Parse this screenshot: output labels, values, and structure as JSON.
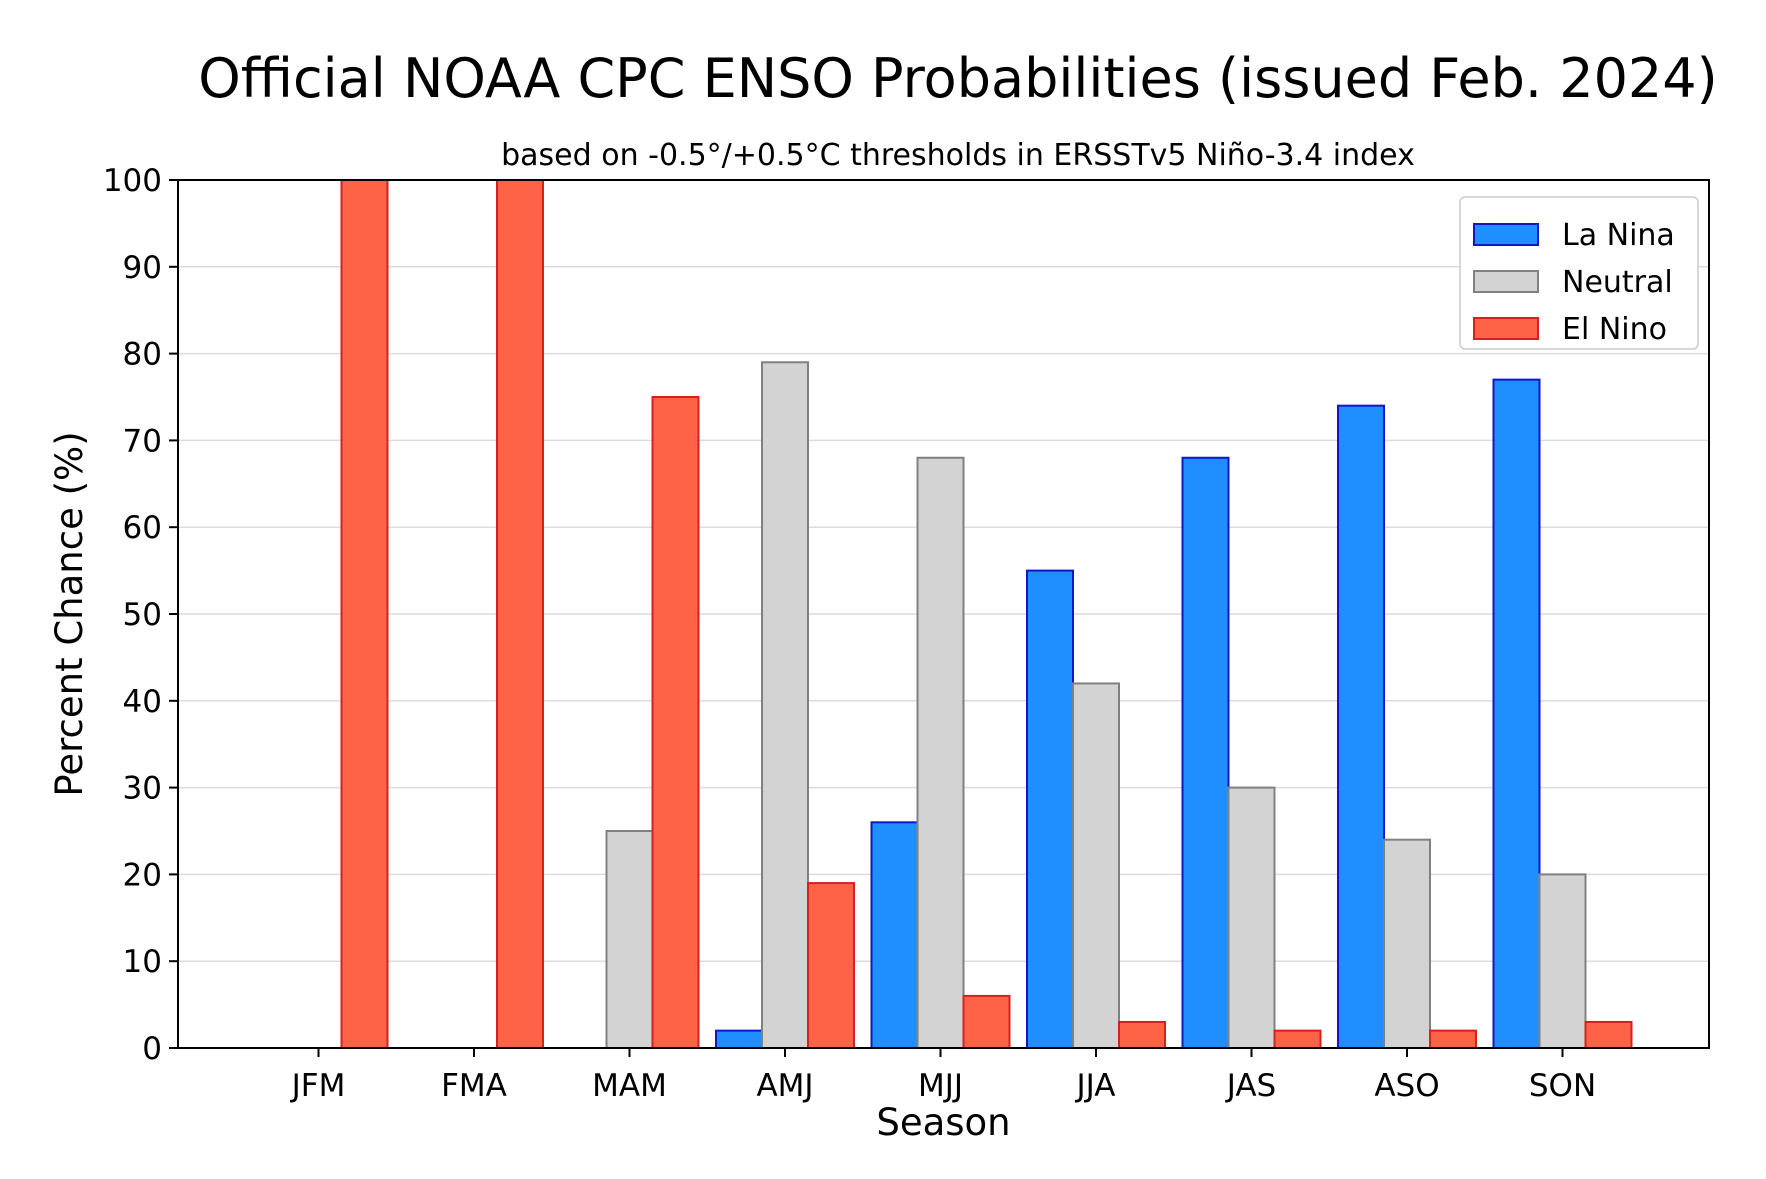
{
  "chart_data": {
    "type": "bar",
    "title": "Official NOAA CPC ENSO Probabilities (issued Feb. 2024)",
    "subtitle": "based on -0.5°/+0.5°C thresholds in ERSSTv5 Niño-3.4 index",
    "xlabel": "Season",
    "ylabel": "Percent Chance (%)",
    "ylim": [
      0,
      100
    ],
    "yticks": [
      0,
      10,
      20,
      30,
      40,
      50,
      60,
      70,
      80,
      90,
      100
    ],
    "grid": "horizontal",
    "legend_position": "top-right",
    "categories": [
      "JFM",
      "FMA",
      "MAM",
      "AMJ",
      "MJJ",
      "JJA",
      "JAS",
      "ASO",
      "SON"
    ],
    "series": [
      {
        "name": "La Nina",
        "color": "#1f8fff",
        "edge": "#1414c8",
        "values": [
          0,
          0,
          0,
          2,
          26,
          55,
          68,
          74,
          77
        ]
      },
      {
        "name": "Neutral",
        "color": "#d3d3d3",
        "edge": "#808080",
        "values": [
          0,
          0,
          25,
          79,
          68,
          42,
          30,
          24,
          20
        ]
      },
      {
        "name": "El Nino",
        "color": "#ff6347",
        "edge": "#d42020",
        "values": [
          100,
          100,
          75,
          19,
          6,
          3,
          2,
          2,
          3
        ]
      }
    ]
  }
}
